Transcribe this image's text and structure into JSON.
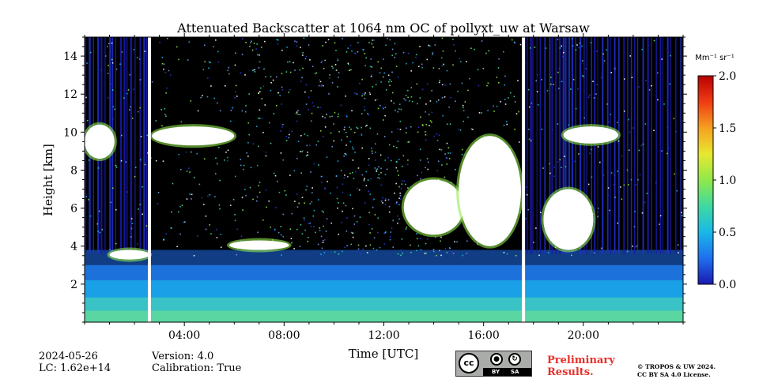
{
  "chart_data": {
    "type": "heatmap",
    "title": "Attenuated Backscatter at 1064 nm OC of pollyxt_uw at Warsaw",
    "xlabel": "Time [UTC]",
    "ylabel": "Height [km]",
    "xlim_hours": [
      0,
      24
    ],
    "ylim_km": [
      0,
      15
    ],
    "x_ticks": [
      {
        "hour": 4,
        "label": "04:00"
      },
      {
        "hour": 8,
        "label": "08:00"
      },
      {
        "hour": 12,
        "label": "12:00"
      },
      {
        "hour": 16,
        "label": "16:00"
      },
      {
        "hour": 20,
        "label": "20:00"
      }
    ],
    "y_ticks": [
      {
        "km": 2,
        "label": "2"
      },
      {
        "km": 4,
        "label": "4"
      },
      {
        "km": 6,
        "label": "6"
      },
      {
        "km": 8,
        "label": "8"
      },
      {
        "km": 10,
        "label": "10"
      },
      {
        "km": 12,
        "label": "12"
      },
      {
        "km": 14,
        "label": "14"
      }
    ],
    "colorbar": {
      "unit": "Mm⁻¹ sr⁻¹",
      "range": [
        0.0,
        2.0
      ],
      "ticks": [
        {
          "value": 0.0,
          "label": "0.0"
        },
        {
          "value": 0.5,
          "label": "0.5"
        },
        {
          "value": 1.0,
          "label": "1.0"
        },
        {
          "value": 1.5,
          "label": "1.5"
        },
        {
          "value": 2.0,
          "label": "2.0"
        }
      ],
      "colormap": [
        "#1a1ab0",
        "#1f6ff0",
        "#19b8e8",
        "#3fd9a0",
        "#8fe84a",
        "#e8e830",
        "#f5a020",
        "#f03c14",
        "#b80000"
      ]
    },
    "data_gaps_hours": [
      2.6,
      17.6
    ],
    "cloud_layers": [
      {
        "t0": 0.0,
        "t1": 1.2,
        "base_km": 8.6,
        "top_km": 10.4
      },
      {
        "t0": 2.7,
        "t1": 6.0,
        "base_km": 9.3,
        "top_km": 10.3
      },
      {
        "t0": 1.0,
        "t1": 2.6,
        "base_km": 3.3,
        "top_km": 3.8
      },
      {
        "t0": 5.8,
        "t1": 8.2,
        "base_km": 3.8,
        "top_km": 4.3
      },
      {
        "t0": 12.8,
        "t1": 15.2,
        "base_km": 4.6,
        "top_km": 7.5
      },
      {
        "t0": 15.0,
        "t1": 17.5,
        "base_km": 4.0,
        "top_km": 9.8
      },
      {
        "t0": 18.4,
        "t1": 20.4,
        "base_km": 3.8,
        "top_km": 7.0
      },
      {
        "t0": 19.2,
        "t1": 21.4,
        "base_km": 9.4,
        "top_km": 10.3
      }
    ]
  },
  "info": {
    "date": "2024-05-26",
    "lc": "LC: 1.62e+14",
    "version": "Version: 4.0",
    "calibration": "Calibration: True"
  },
  "license": {
    "cc_label": "cc",
    "by": "BY",
    "sa": "SA",
    "preliminary_line1": "Preliminary",
    "preliminary_line2": "Results.",
    "copyright_line1": "© TROPOS & UW 2024.",
    "copyright_line2": "CC BY SA 4.0 License."
  }
}
